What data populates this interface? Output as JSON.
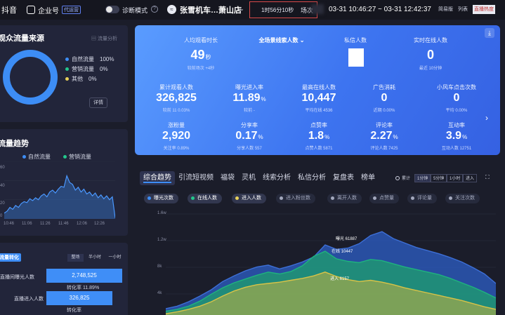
{
  "topbar": {
    "brand": "抖音",
    "account_label": "企业号",
    "account_tag": "代运营",
    "diagnose_label": "诊断模式",
    "shop_name": "张雪机车…萧山店",
    "duration": "1时56分10秒",
    "scene_label": "场次",
    "time_range": "03-31 10:46:27 ~ 03-31 12:42:37",
    "simple_btn": "简易版",
    "list_btn": "列表",
    "live_hot_btn": "直播热度"
  },
  "traffic_source": {
    "title": "观众流量来源",
    "analysis_link": "流量分析",
    "legend": [
      {
        "label": "自然流量",
        "value": "100%",
        "color": "#3d8df5"
      },
      {
        "label": "营销流量",
        "value": "0%",
        "color": "#23c68b"
      },
      {
        "label": "其他",
        "value": "0%",
        "color": "#e7d05a"
      }
    ],
    "detail_button": "详情",
    "donut_fraction": 1.0
  },
  "traffic_trend": {
    "title": "流量趋势",
    "legend_natural": "自然流量",
    "legend_marketing": "营销流量",
    "y_labels": [
      "60",
      "40",
      "20",
      "0"
    ],
    "x_labels": [
      "10:46",
      "11:06",
      "11:26",
      "11:46",
      "12:06",
      "12:26"
    ],
    "series": [
      6,
      8,
      12,
      10,
      14,
      12,
      16,
      18,
      17,
      21,
      19,
      22,
      20,
      24,
      26,
      23,
      28,
      30,
      27,
      31,
      34,
      33,
      45,
      38,
      36,
      30,
      33,
      28,
      31,
      26,
      28,
      24,
      27,
      22,
      25,
      21,
      24,
      20,
      23,
      1
    ]
  },
  "conversion": {
    "title": "流量转化",
    "tabs": [
      "整场",
      "半小时",
      "一小时"
    ],
    "rows": [
      {
        "label": "直播间曝光人数",
        "value": "2,748,525",
        "rate_label": "转化率 11.89%"
      },
      {
        "label": "直播进入人数",
        "value": "326,825",
        "rate_label": "转化率"
      }
    ]
  },
  "metrics_card": {
    "top_row": [
      {
        "label": "人均观看时长",
        "value": "49",
        "unit": "秒",
        "sub": "较前场次 +4秒"
      },
      {
        "label": "全场景线索人数",
        "value": "",
        "unit": "",
        "sub": ""
      },
      {
        "label": "私信人数",
        "value": "",
        "unit": "",
        "sub": ""
      },
      {
        "label": "实时在线人数",
        "value": "0",
        "unit": "",
        "sub": "最近 10分钟"
      }
    ],
    "mid_row": [
      {
        "label": "累计观看人数",
        "value": "326,825",
        "unit": "",
        "sub": "较前 11 0.03%"
      },
      {
        "label": "曝光进入率",
        "value": "11.89",
        "unit": "%",
        "sub": "较前 -"
      },
      {
        "label": "最高在线人数",
        "value": "10,447",
        "unit": "",
        "sub": "平均在线 4536"
      },
      {
        "label": "广告消耗",
        "value": "0",
        "unit": "",
        "sub": "近期 0.00%"
      },
      {
        "label": "小风车点击次数",
        "value": "0",
        "unit": "",
        "sub": "平均 0.00%"
      }
    ],
    "bot_row": [
      {
        "label": "涨粉量",
        "value": "2,920",
        "unit": "",
        "sub": "关注率 0.89%"
      },
      {
        "label": "分享率",
        "value": "0.17",
        "unit": "%",
        "sub": "分享人数 557"
      },
      {
        "label": "点赞率",
        "value": "1.8",
        "unit": "%",
        "sub": "点赞人数 5871"
      },
      {
        "label": "评论率",
        "value": "2.27",
        "unit": "%",
        "sub": "评论人数 7425"
      },
      {
        "label": "互动率",
        "value": "3.9",
        "unit": "%",
        "sub": "互动人数 12751"
      }
    ]
  },
  "analysis_tabs": [
    "综合趋势",
    "引流短视频",
    "福袋",
    "灵机",
    "线索分析",
    "私信分析",
    "复盘表",
    "榜单"
  ],
  "chart_toggles": {
    "cumulative": "累计",
    "intervals": [
      "1分钟",
      "5分钟",
      "1小时",
      "进入"
    ]
  },
  "metric_chips": [
    {
      "label": "曝光次数",
      "on": true,
      "color": "#3d8df5"
    },
    {
      "label": "在线人数",
      "on": true,
      "color": "#23c68b"
    },
    {
      "label": "进入人数",
      "on": true,
      "color": "#e7d05a"
    },
    {
      "label": "进入粉丝数",
      "on": false,
      "color": "#8a8ea4"
    },
    {
      "label": "离开人数",
      "on": false,
      "color": "#8a8ea4"
    },
    {
      "label": "点赞量",
      "on": false,
      "color": "#8a8ea4"
    },
    {
      "label": "评论量",
      "on": false,
      "color": "#8a8ea4"
    },
    {
      "label": "关注次数",
      "on": false,
      "color": "#8a8ea4"
    }
  ],
  "chart_data": {
    "type": "area",
    "y_ticks": [
      "1.6w",
      "1.2w",
      "8k",
      "4k"
    ],
    "annotations": [
      "曝光 61887",
      "在线 10447",
      "进入 6157"
    ],
    "series": [
      {
        "name": "曝光次数",
        "values": [
          1.0,
          1.4,
          2.1,
          3.0,
          4.0,
          5.3,
          6.2,
          7.0,
          7.6,
          7.9,
          7.3,
          7.8,
          8.4,
          9.2,
          11.1,
          10.4,
          10.6,
          11.3,
          12.6,
          13.2,
          12.1,
          11.4,
          10.7,
          10.2,
          9.7,
          9.1,
          8.4,
          7.5,
          6.5,
          5.0
        ]
      },
      {
        "name": "在线人数",
        "values": [
          0.6,
          0.9,
          1.4,
          2.2,
          3.3,
          4.3,
          5.1,
          5.7,
          6.3,
          6.8,
          6.5,
          6.9,
          7.8,
          9.3,
          10.1,
          8.9,
          8.5,
          8.3,
          8.8,
          8.6,
          8.1,
          7.6,
          7.2,
          6.8,
          6.4,
          5.8,
          5.1,
          4.4,
          3.6,
          2.7
        ]
      },
      {
        "name": "进入人数",
        "values": [
          0.2,
          0.5,
          0.9,
          1.4,
          2.1,
          3.0,
          3.8,
          4.4,
          4.8,
          5.0,
          5.2,
          5.5,
          5.8,
          6.2,
          6.8,
          6.1,
          5.6,
          5.3,
          5.5,
          5.2,
          4.8,
          4.3,
          3.9,
          3.5,
          3.1,
          2.7,
          2.3,
          1.8,
          1.3,
          0.9
        ]
      }
    ],
    "ylim": [
      0,
      16
    ]
  }
}
